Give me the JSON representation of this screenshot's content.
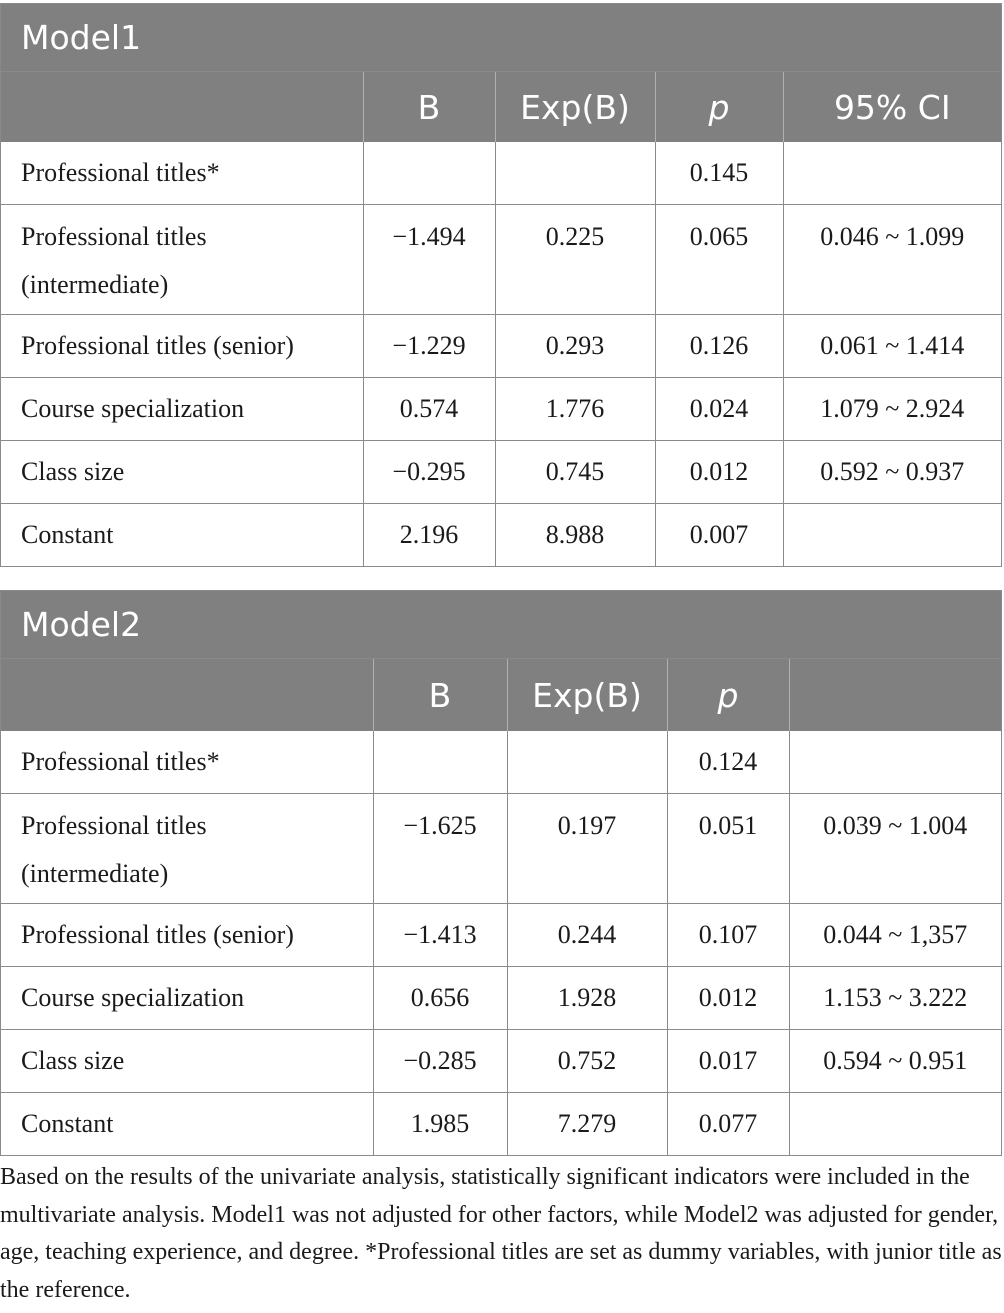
{
  "models": [
    {
      "title": "Model1",
      "headers": [
        "",
        "B",
        "Exp(B)",
        "p",
        "95% CI"
      ],
      "rows": [
        {
          "label": "Professional titles*",
          "b": "",
          "expb": "",
          "p": "0.145",
          "ci": ""
        },
        {
          "label": "Professional titles (intermediate)",
          "b": "−1.494",
          "expb": "0.225",
          "p": "0.065",
          "ci": "0.046 ~ 1.099"
        },
        {
          "label": "Professional titles (senior)",
          "b": "−1.229",
          "expb": "0.293",
          "p": "0.126",
          "ci": "0.061 ~ 1.414"
        },
        {
          "label": "Course specialization",
          "b": "0.574",
          "expb": "1.776",
          "p": "0.024",
          "ci": "1.079 ~ 2.924"
        },
        {
          "label": "Class size",
          "b": "−0.295",
          "expb": "0.745",
          "p": "0.012",
          "ci": "0.592 ~ 0.937"
        },
        {
          "label": "Constant",
          "b": "2.196",
          "expb": "8.988",
          "p": "0.007",
          "ci": ""
        }
      ]
    },
    {
      "title": "Model2",
      "headers": [
        "",
        "B",
        "Exp(B)",
        "p",
        ""
      ],
      "rows": [
        {
          "label": "Professional titles*",
          "b": "",
          "expb": "",
          "p": "0.124",
          "ci": ""
        },
        {
          "label": "Professional titles (intermediate)",
          "b": "−1.625",
          "expb": "0.197",
          "p": "0.051",
          "ci": "0.039 ~ 1.004"
        },
        {
          "label": "Professional titles (senior)",
          "b": "−1.413",
          "expb": "0.244",
          "p": "0.107",
          "ci": "0.044 ~ 1,357"
        },
        {
          "label": "Course specialization",
          "b": "0.656",
          "expb": "1.928",
          "p": "0.012",
          "ci": "1.153 ~ 3.222"
        },
        {
          "label": "Class size",
          "b": "−0.285",
          "expb": "0.752",
          "p": "0.017",
          "ci": "0.594 ~ 0.951"
        },
        {
          "label": "Constant",
          "b": "1.985",
          "expb": "7.279",
          "p": "0.077",
          "ci": ""
        }
      ]
    }
  ],
  "footnote": "Based on the results of the univariate analysis, statistically significant indicators were included in the multivariate analysis. Model1 was not adjusted for other factors, while Model2 was adjusted for gender, age, teaching experience, and degree. *Professional titles are set as dummy variables, with junior title as the reference."
}
